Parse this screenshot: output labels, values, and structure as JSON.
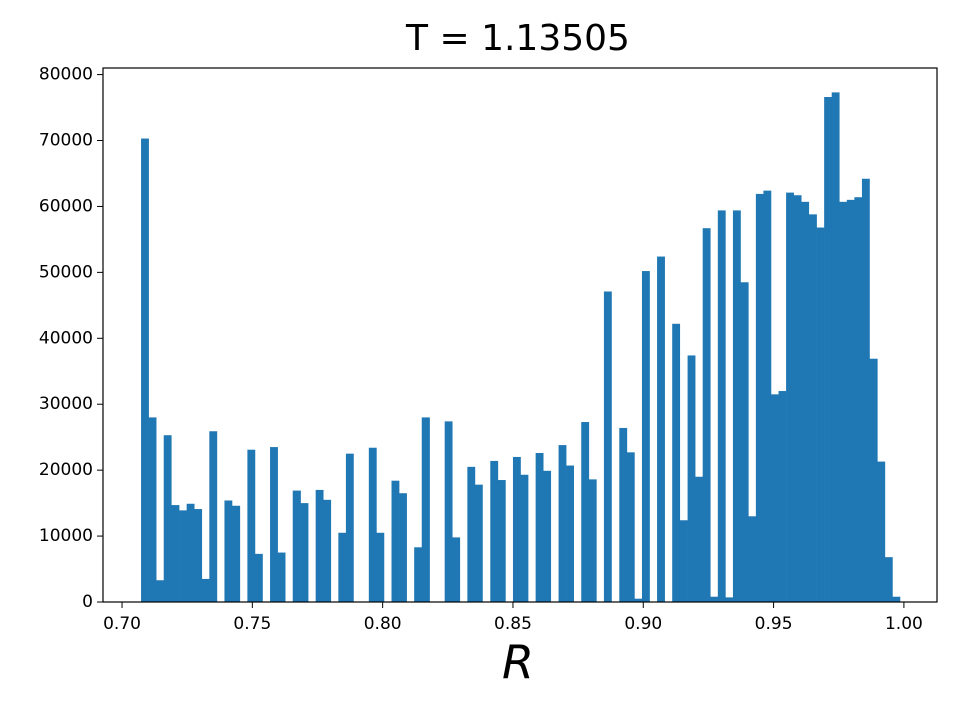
{
  "chart_data": {
    "type": "histogram",
    "title": "T = 1.13505",
    "x_label": "R",
    "color": "#1f77b4",
    "bins": [
      0.7073,
      0.7102,
      0.7131,
      0.716,
      0.7189,
      0.7219,
      0.7248,
      0.7277,
      0.7306,
      0.7335,
      0.7364,
      0.7393,
      0.7422,
      0.7452,
      0.7481,
      0.751,
      0.7539,
      0.7568,
      0.7597,
      0.7626,
      0.7655,
      0.7685,
      0.7714,
      0.7743,
      0.7772,
      0.7801,
      0.783,
      0.7859,
      0.7888,
      0.7917,
      0.7947,
      0.7976,
      0.8005,
      0.8034,
      0.8063,
      0.8092,
      0.8121,
      0.815,
      0.818,
      0.8209,
      0.8238,
      0.8267,
      0.8296,
      0.8325,
      0.8354,
      0.8383,
      0.8413,
      0.8442,
      0.8471,
      0.85,
      0.8529,
      0.8558,
      0.8587,
      0.8616,
      0.8645,
      0.8675,
      0.8704,
      0.8733,
      0.8762,
      0.8791,
      0.882,
      0.8849,
      0.8878,
      0.8908,
      0.8937,
      0.8966,
      0.8995,
      0.9024,
      0.9053,
      0.9082,
      0.9111,
      0.914,
      0.917,
      0.9199,
      0.9228,
      0.9257,
      0.9286,
      0.9315,
      0.9344,
      0.9373,
      0.9403,
      0.9432,
      0.9461,
      0.949,
      0.9519,
      0.9548,
      0.9577,
      0.9606,
      0.9635,
      0.9665,
      0.9694,
      0.9723,
      0.9752,
      0.9781,
      0.981,
      0.9839,
      0.9868,
      0.9898,
      0.9927,
      0.9956,
      0.9985
    ],
    "values": [
      70300,
      28000,
      3300,
      25300,
      14700,
      13900,
      14900,
      14100,
      3500,
      25900,
      0,
      15400,
      14600,
      0,
      23100,
      7300,
      0,
      23500,
      7500,
      0,
      16900,
      15000,
      0,
      17000,
      15500,
      0,
      10500,
      22500,
      0,
      0,
      23400,
      10500,
      0,
      18400,
      16500,
      0,
      8300,
      28000,
      0,
      0,
      27400,
      9800,
      0,
      20500,
      17800,
      0,
      21400,
      18500,
      0,
      22000,
      19300,
      0,
      22600,
      19900,
      0,
      23800,
      20700,
      0,
      27300,
      18600,
      0,
      47100,
      0,
      26400,
      22700,
      500,
      50200,
      0,
      52400,
      0,
      42200,
      12400,
      37400,
      19000,
      56700,
      800,
      59400,
      700,
      59400,
      48500,
      13000,
      61900,
      62400,
      31500,
      32000,
      62100,
      61700,
      60700,
      58800,
      56800,
      76600,
      77300,
      60700,
      61000,
      61400,
      64200,
      36900,
      21300,
      6800,
      800
    ],
    "xlim": [
      0.6927,
      1.0127
    ],
    "ylim": [
      0,
      81000
    ],
    "xticks": [
      {
        "value": 0.7,
        "label": "0.70"
      },
      {
        "value": 0.75,
        "label": "0.75"
      },
      {
        "value": 0.8,
        "label": "0.80"
      },
      {
        "value": 0.85,
        "label": "0.85"
      },
      {
        "value": 0.9,
        "label": "0.90"
      },
      {
        "value": 0.95,
        "label": "0.95"
      },
      {
        "value": 1.0,
        "label": "1.00"
      }
    ],
    "yticks": [
      0,
      10000,
      20000,
      30000,
      40000,
      50000,
      60000,
      70000,
      80000
    ]
  }
}
